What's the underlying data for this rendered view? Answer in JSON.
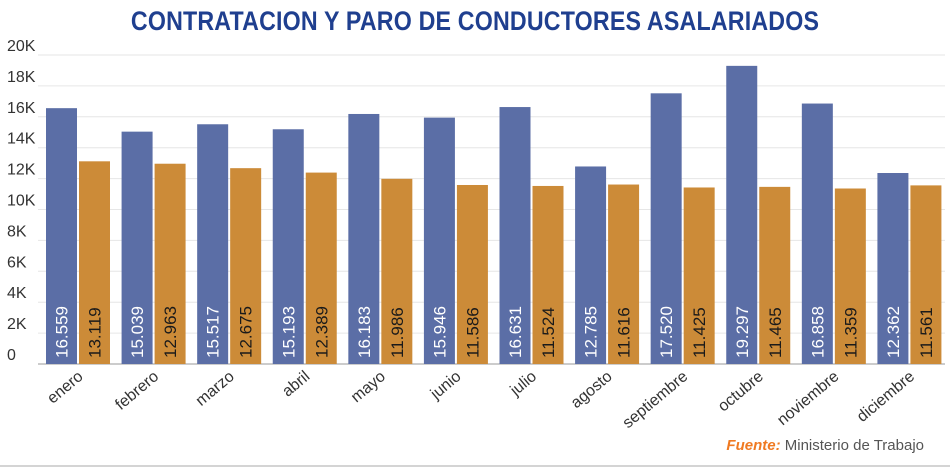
{
  "title": "CONTRATACION Y PARO DE CONDUCTORES ASALARIADOS",
  "source": {
    "label": "Fuente:",
    "text": "Ministerio de Trabajo"
  },
  "colors": {
    "series1": "#5b6ea6",
    "series2": "#cc8b38",
    "title": "#1f3f8f",
    "source_label": "#f07a22"
  },
  "chart_data": {
    "type": "bar",
    "title": "CONTRATACION Y PARO DE CONDUCTORES ASALARIADOS",
    "xlabel": "",
    "ylabel": "",
    "ylim": [
      0,
      20000
    ],
    "yticks": [
      0,
      2000,
      4000,
      6000,
      8000,
      10000,
      12000,
      14000,
      16000,
      18000,
      20000
    ],
    "ytick_labels": [
      "0",
      "2K",
      "4K",
      "6K",
      "8K",
      "10K",
      "12K",
      "14K",
      "16K",
      "18K",
      "20K"
    ],
    "grid": true,
    "legend": "none",
    "categories": [
      "enero",
      "febrero",
      "marzo",
      "abril",
      "mayo",
      "junio",
      "julio",
      "agosto",
      "septiembre",
      "octubre",
      "noviembre",
      "diciembre"
    ],
    "series": [
      {
        "name": "Contratación",
        "color": "#5b6ea6",
        "values": [
          16559,
          15039,
          15517,
          15193,
          16183,
          15946,
          16631,
          12785,
          17520,
          19297,
          16858,
          12362
        ],
        "labels": [
          "16.559",
          "15.039",
          "15.517",
          "15.193",
          "16.183",
          "15.946",
          "16.631",
          "12.785",
          "17.520",
          "19.297",
          "16.858",
          "12.362"
        ]
      },
      {
        "name": "Paro",
        "color": "#cc8b38",
        "values": [
          13119,
          12963,
          12675,
          12389,
          11986,
          11586,
          11524,
          11616,
          11425,
          11465,
          11359,
          11561
        ],
        "labels": [
          "13.119",
          "12.963",
          "12.675",
          "12.389",
          "11.986",
          "11.586",
          "11.524",
          "11.616",
          "11.425",
          "11.465",
          "11.359",
          "11.561"
        ]
      }
    ]
  }
}
